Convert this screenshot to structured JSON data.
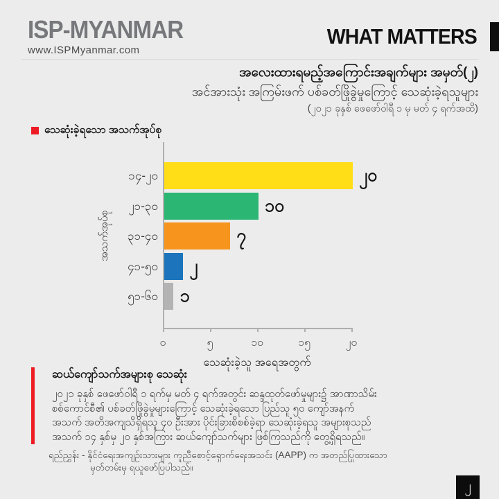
{
  "header": {
    "logo": "ISP-MYANMAR",
    "website": "www.ISPMyanmar.com",
    "brand": "WHAT MATTERS"
  },
  "title": {
    "line1": "အလေးထားရမည့်အကြောင်းအချက်များ အမှတ်(၂)",
    "line2": "အင်အားသုံး အကြမ်းဖက် ပစ်ခတ်ဖြိုခွဲမှုကြောင့် သေဆုံးခဲ့ရသူများ",
    "line3": "(၂၀၂၁ ခုနှစ် ဖေဖော်ဝါရီ ၁ မှ မတ် ၄ ရက်အထိ)"
  },
  "legend": {
    "label": "သေဆုံးခဲ့ရသော အသက်အုပ်စု",
    "color": "#ED1C24"
  },
  "chart_data": {
    "type": "bar",
    "orientation": "horizontal",
    "categories": [
      "၁၄-၂၀",
      "၂၁-၃၀",
      "၃၁-၄၀",
      "၄၁-၅၀",
      "၅၁-၆၀"
    ],
    "values": [
      20,
      10,
      7,
      2,
      1
    ],
    "value_labels": [
      "၂၀",
      "၁၀",
      "၇",
      "၂",
      "၁"
    ],
    "bar_colors": [
      "#FFDE17",
      "#2BB673",
      "#F7941E",
      "#1C75BC",
      "#B3B3B3"
    ],
    "xlabel": "သေဆုံးခဲ့သူ အရေအတွက်",
    "ylabel": "အသက်အုပ်စု",
    "xlim": [
      0,
      20
    ],
    "xticks": [
      0,
      5,
      10,
      15,
      20
    ],
    "xtick_labels": [
      "၀",
      "၅",
      "၁၀",
      "၁၅",
      "၂၀"
    ],
    "grid": false,
    "legend_position": "top-left"
  },
  "note": {
    "heading": "ဆယ်ကျော်သက်အများစု သေဆုံး",
    "body_lines": [
      "၂၀၂၁ ခုနှစ် ဖေဖော်ဝါရီ ၁ ရက်မှ မတ် ၄ ရက်အတွင်း ဆန္ဒထုတ်ဖော်မှုများ၌ အာဏာသိမ်း",
      "စစ်ကောင်စီ၏ ပစ်ခတ်ဖြိုခွဲမှုများကြောင့် သေဆုံးခဲ့ရသော ပြည်သူ ၅၀ ကျော်အနက်",
      "အသက် အတိအကျသိရှိရသူ ၄၀ ဦးအား ပိုင်းခြားစိစစ်ခဲ့ရာ သေဆုံးခဲ့ရသူ အများစုသည်",
      "အသက် ၁၄ နှစ်မှ ၂၀ နှစ်အကြား ဆယ်ကျော်သက်များ ဖြစ်ကြသည်ကို တွေ့ရှိရသည်။"
    ],
    "accent_color": "#ED1C24"
  },
  "source": {
    "line1": "ရည်ညွှန်း - နိုင်ငံရေးအကျဉ်းသားများ ကူညီစောင့်ရှောက်ရေးအသင်း (AAPP) က အတည်ပြုထားသော",
    "line2": "မှတ်တမ်းမှ ရယူဖော်ပြပါသည်။"
  },
  "page_number": "၂"
}
